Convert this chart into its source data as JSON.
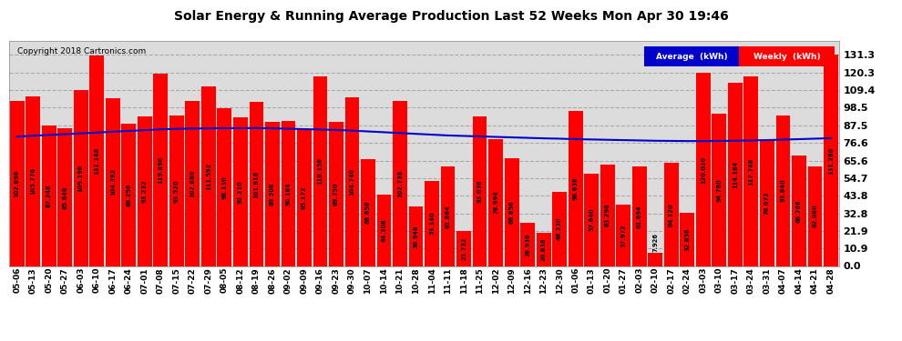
{
  "title": "Solar Energy & Running Average Production Last 52 Weeks Mon Apr 30 19:46",
  "copyright": "Copyright 2018 Cartronics.com",
  "bar_color": "#ff0000",
  "avg_line_color": "#0000cc",
  "background_color": "#ffffff",
  "plot_bg_color": "#dcdcdc",
  "grid_color": "#aaaaaa",
  "yticks": [
    0.0,
    10.9,
    21.9,
    32.8,
    43.8,
    54.7,
    65.6,
    76.6,
    87.5,
    98.5,
    109.4,
    120.3,
    131.3
  ],
  "weeks": [
    "05-06",
    "05-13",
    "05-20",
    "05-27",
    "06-03",
    "06-10",
    "06-17",
    "06-24",
    "07-01",
    "07-08",
    "07-15",
    "07-22",
    "07-29",
    "08-05",
    "08-12",
    "08-19",
    "08-26",
    "09-02",
    "09-09",
    "09-16",
    "09-23",
    "09-30",
    "10-07",
    "10-14",
    "10-21",
    "10-28",
    "11-04",
    "11-11",
    "11-18",
    "11-25",
    "12-02",
    "12-09",
    "12-16",
    "12-23",
    "12-30",
    "01-06",
    "01-13",
    "01-20",
    "01-27",
    "02-03",
    "02-10",
    "02-17",
    "02-24",
    "03-03",
    "03-10",
    "03-17",
    "03-24",
    "03-31",
    "04-07",
    "04-14",
    "04-21",
    "04-28"
  ],
  "values": [
    102.696,
    105.776,
    87.248,
    85.648,
    109.196,
    131.148,
    104.392,
    88.256,
    93.232,
    119.896,
    93.52,
    102.68,
    111.592,
    98.13,
    92.21,
    101.916,
    89.508,
    90.164,
    85.172,
    118.156,
    89.75,
    104.74,
    66.658,
    44.308,
    102.738,
    36.946,
    53.14,
    61.864,
    21.732,
    93.036,
    78.994,
    66.856,
    26.936,
    20.838,
    46.23,
    96.638,
    57.64,
    63.296,
    37.972,
    61.694,
    7.926,
    64.12,
    32.856,
    120.02,
    94.78,
    114.184,
    117.748,
    78.072,
    93.84,
    68.768,
    62.08,
    131.28
  ],
  "avg_values": [
    80.5,
    81.0,
    81.5,
    82.0,
    82.5,
    83.0,
    83.5,
    84.0,
    84.5,
    85.0,
    85.3,
    85.5,
    85.6,
    85.7,
    85.7,
    85.8,
    85.6,
    85.4,
    85.1,
    84.9,
    84.6,
    84.2,
    83.7,
    83.2,
    82.7,
    82.2,
    81.7,
    81.2,
    80.9,
    80.6,
    80.3,
    80.0,
    79.7,
    79.4,
    79.2,
    78.9,
    78.7,
    78.5,
    78.3,
    78.1,
    77.9,
    77.8,
    77.7,
    77.7,
    77.8,
    77.9,
    78.1,
    78.3,
    78.6,
    78.9,
    79.2,
    79.5
  ],
  "legend_avg_bg": "#0000cc",
  "legend_weekly_bg": "#ff0000",
  "legend_text_color": "#ffffff",
  "ylim": [
    0,
    140
  ]
}
